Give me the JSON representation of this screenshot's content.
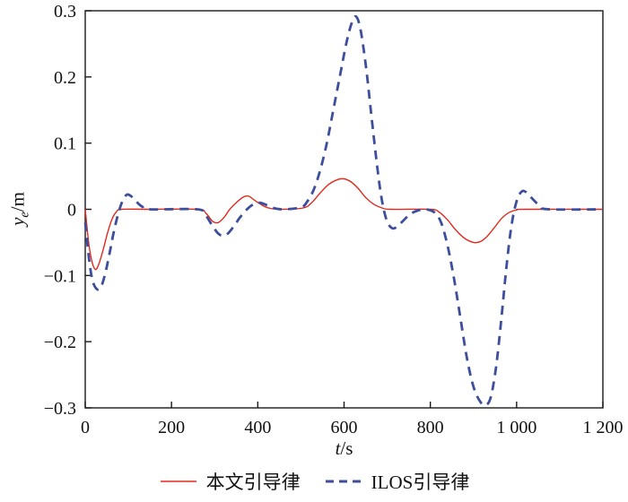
{
  "colors": {
    "red": "#e02a1e",
    "blue": "#3d4e9d",
    "axis": "#1a1a1a",
    "background": "#ffffff"
  },
  "axis_labels": {
    "y_var": "y",
    "y_sub": "e",
    "y_unit": "/m",
    "x_var": "t",
    "x_unit": "/s"
  },
  "legend": {
    "items": [
      {
        "label": "本文引导律",
        "style": "solid",
        "color": "#e02a1e"
      },
      {
        "label": "ILOS引导律",
        "style": "dashed",
        "color": "#3d4e9d"
      }
    ]
  },
  "chart_data": {
    "type": "line",
    "title": "",
    "xlabel": "t/s",
    "ylabel": "y_e/m",
    "xlim": [
      0,
      1200
    ],
    "ylim": [
      -0.3,
      0.3
    ],
    "grid": false,
    "legend_position": "bottom",
    "x_ticks": {
      "values": [
        0,
        200,
        400,
        600,
        800,
        1000,
        1200
      ],
      "labels": [
        "0",
        "200",
        "400",
        "600",
        "800",
        "1 000",
        "1 200"
      ]
    },
    "y_ticks": {
      "values": [
        0.3,
        0.2,
        0.1,
        0,
        -0.1,
        -0.2,
        -0.3
      ],
      "labels": [
        "0.3",
        "0.2",
        "0.1",
        "0",
        "−0.1",
        "−0.2",
        "−0.3"
      ]
    },
    "series": [
      {
        "name": "本文引导律",
        "color": "#e02a1e",
        "line_style": "solid",
        "line_width": 1.4,
        "points": [
          [
            0,
            0
          ],
          [
            8,
            -0.05
          ],
          [
            16,
            -0.08
          ],
          [
            24,
            -0.091
          ],
          [
            32,
            -0.082
          ],
          [
            42,
            -0.06
          ],
          [
            52,
            -0.035
          ],
          [
            62,
            -0.015
          ],
          [
            72,
            -0.004
          ],
          [
            85,
            0
          ],
          [
            150,
            0
          ],
          [
            260,
            0
          ],
          [
            280,
            -0.006
          ],
          [
            295,
            -0.018
          ],
          [
            308,
            -0.02
          ],
          [
            322,
            -0.012
          ],
          [
            335,
            0
          ],
          [
            350,
            0.01
          ],
          [
            365,
            0.018
          ],
          [
            378,
            0.02
          ],
          [
            392,
            0.014
          ],
          [
            408,
            0.007
          ],
          [
            425,
            0.002
          ],
          [
            450,
            0
          ],
          [
            505,
            0.002
          ],
          [
            525,
            0.01
          ],
          [
            545,
            0.025
          ],
          [
            565,
            0.038
          ],
          [
            585,
            0.045
          ],
          [
            600,
            0.046
          ],
          [
            615,
            0.042
          ],
          [
            632,
            0.032
          ],
          [
            650,
            0.018
          ],
          [
            668,
            0.008
          ],
          [
            688,
            0.002
          ],
          [
            710,
            0
          ],
          [
            800,
            0
          ],
          [
            820,
            -0.004
          ],
          [
            840,
            -0.016
          ],
          [
            860,
            -0.032
          ],
          [
            880,
            -0.044
          ],
          [
            900,
            -0.05
          ],
          [
            915,
            -0.049
          ],
          [
            930,
            -0.042
          ],
          [
            948,
            -0.028
          ],
          [
            965,
            -0.014
          ],
          [
            982,
            -0.005
          ],
          [
            1000,
            -0.001
          ],
          [
            1020,
            0
          ],
          [
            1200,
            0
          ]
        ]
      },
      {
        "name": "ILOS引导律",
        "color": "#3d4e9d",
        "line_style": "dashed",
        "line_width": 2.8,
        "dash": [
          10,
          7
        ],
        "points": [
          [
            0,
            -0.02
          ],
          [
            8,
            -0.07
          ],
          [
            16,
            -0.105
          ],
          [
            26,
            -0.12
          ],
          [
            36,
            -0.118
          ],
          [
            46,
            -0.098
          ],
          [
            56,
            -0.068
          ],
          [
            66,
            -0.035
          ],
          [
            76,
            -0.008
          ],
          [
            86,
            0.012
          ],
          [
            96,
            0.022
          ],
          [
            106,
            0.02
          ],
          [
            118,
            0.012
          ],
          [
            132,
            0.004
          ],
          [
            150,
            0
          ],
          [
            260,
            0
          ],
          [
            278,
            -0.008
          ],
          [
            292,
            -0.022
          ],
          [
            306,
            -0.035
          ],
          [
            318,
            -0.04
          ],
          [
            330,
            -0.037
          ],
          [
            344,
            -0.026
          ],
          [
            358,
            -0.013
          ],
          [
            372,
            -0.002
          ],
          [
            386,
            0.006
          ],
          [
            400,
            0.01
          ],
          [
            415,
            0.008
          ],
          [
            432,
            0.003
          ],
          [
            455,
            0
          ],
          [
            500,
            0.003
          ],
          [
            515,
            0.012
          ],
          [
            530,
            0.03
          ],
          [
            545,
            0.06
          ],
          [
            560,
            0.1
          ],
          [
            575,
            0.15
          ],
          [
            590,
            0.2
          ],
          [
            605,
            0.25
          ],
          [
            618,
            0.282
          ],
          [
            628,
            0.291
          ],
          [
            638,
            0.272
          ],
          [
            650,
            0.22
          ],
          [
            662,
            0.15
          ],
          [
            674,
            0.08
          ],
          [
            686,
            0.02
          ],
          [
            698,
            -0.015
          ],
          [
            710,
            -0.028
          ],
          [
            722,
            -0.027
          ],
          [
            736,
            -0.018
          ],
          [
            752,
            -0.008
          ],
          [
            770,
            -0.002
          ],
          [
            790,
            0
          ],
          [
            810,
            -0.005
          ],
          [
            825,
            -0.02
          ],
          [
            840,
            -0.055
          ],
          [
            855,
            -0.105
          ],
          [
            870,
            -0.165
          ],
          [
            885,
            -0.225
          ],
          [
            900,
            -0.268
          ],
          [
            915,
            -0.29
          ],
          [
            928,
            -0.296
          ],
          [
            940,
            -0.284
          ],
          [
            952,
            -0.24
          ],
          [
            964,
            -0.17
          ],
          [
            976,
            -0.09
          ],
          [
            988,
            -0.025
          ],
          [
            1000,
            0.012
          ],
          [
            1012,
            0.027
          ],
          [
            1024,
            0.025
          ],
          [
            1038,
            0.015
          ],
          [
            1055,
            0.005
          ],
          [
            1075,
            0
          ],
          [
            1200,
            0
          ]
        ]
      }
    ]
  }
}
